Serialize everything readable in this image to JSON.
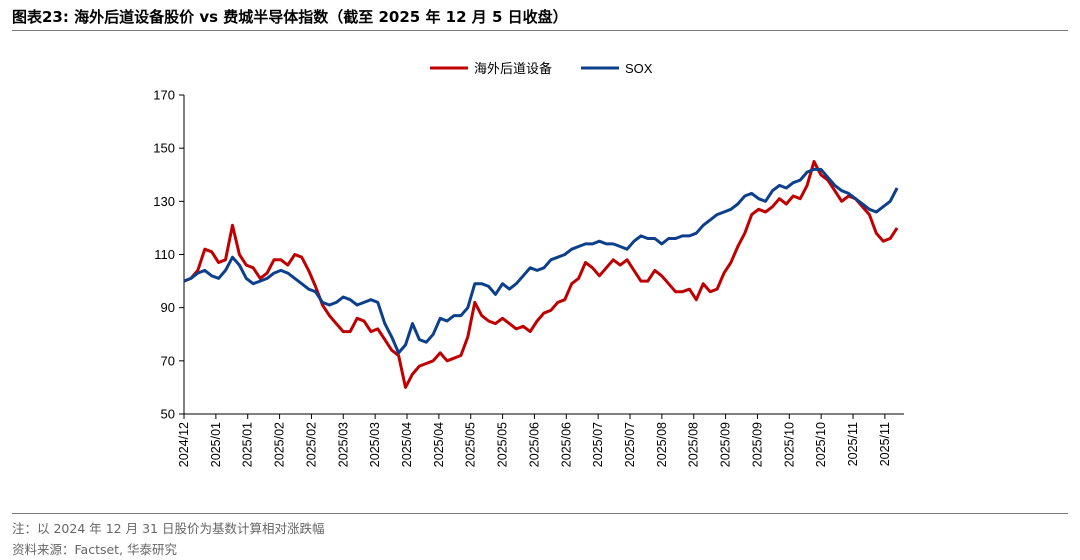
{
  "header": {
    "title": "图表23:   海外后道设备股价 vs 费城半导体指数（截至 2025 年 12 月 5 日收盘）"
  },
  "footer": {
    "note": "注：以 2024 年 12 月 31 日股价为基数计算相对涨跌幅",
    "source": "资料来源：Factset, 华泰研究"
  },
  "colors": {
    "series_a": "#c00000",
    "series_b": "#0c3f8c",
    "axis": "#000000"
  },
  "chart_data": {
    "type": "line",
    "title": "海外后道设备股价 vs 费城半导体指数",
    "xlabel": "",
    "ylabel": "",
    "ylim": [
      50,
      170
    ],
    "yticks": [
      50,
      70,
      90,
      110,
      130,
      150,
      170
    ],
    "xticks": [
      "2024/12",
      "2025/01",
      "2025/01",
      "2025/02",
      "2025/02",
      "2025/03",
      "2025/03",
      "2025/04",
      "2025/04",
      "2025/05",
      "2025/05",
      "2025/06",
      "2025/06",
      "2025/07",
      "2025/07",
      "2025/08",
      "2025/08",
      "2025/09",
      "2025/09",
      "2025/10",
      "2025/10",
      "2025/11",
      "2025/11"
    ],
    "grid": false,
    "legend": "top-center",
    "x_range_weeks": [
      0,
      52
    ],
    "series": [
      {
        "name": "海外后道设备",
        "color": "#c00000",
        "x": [
          0,
          0.5,
          1,
          1.5,
          2,
          2.5,
          3,
          3.5,
          4,
          4.5,
          5,
          5.5,
          6,
          6.5,
          7,
          7.5,
          8,
          8.5,
          9,
          9.5,
          10,
          10.5,
          11,
          11.5,
          12,
          12.5,
          13,
          13.5,
          14,
          14.5,
          15,
          15.5,
          16,
          16.5,
          17,
          17.5,
          18,
          18.5,
          19,
          19.5,
          20,
          20.5,
          21,
          21.5,
          22,
          22.5,
          23,
          23.5,
          24,
          24.5,
          25,
          25.5,
          26,
          26.5,
          27,
          27.5,
          28,
          28.5,
          29,
          29.5,
          30,
          30.5,
          31,
          31.5,
          32,
          32.5,
          33,
          33.5,
          34,
          34.5,
          35,
          35.5,
          36,
          36.5,
          37,
          37.5,
          38,
          38.5,
          39,
          39.5,
          40,
          40.5,
          41,
          41.5,
          42,
          42.5,
          43,
          43.5,
          44,
          44.5,
          45,
          45.5,
          46,
          46.5,
          47,
          47.5,
          48,
          48.5,
          49,
          49.5,
          50,
          50.5,
          51,
          51.5
        ],
        "values": [
          100,
          101,
          104,
          112,
          111,
          107,
          108,
          121,
          110,
          106,
          105,
          101,
          103,
          108,
          108,
          106,
          110,
          109,
          104,
          98,
          91,
          87,
          84,
          81,
          81,
          86,
          85,
          81,
          82,
          78,
          74,
          72,
          60,
          65,
          68,
          69,
          70,
          73,
          70,
          71,
          72,
          79,
          92,
          87,
          85,
          84,
          86,
          84,
          82,
          83,
          81,
          85,
          88,
          89,
          92,
          93,
          99,
          101,
          107,
          105,
          102,
          105,
          108,
          106,
          108,
          104,
          100,
          100,
          104,
          102,
          99,
          96,
          96,
          97,
          93,
          99,
          96,
          97,
          103,
          107,
          113,
          118,
          125,
          127,
          126,
          128,
          131,
          129,
          132,
          131,
          136,
          145,
          140,
          138,
          134,
          130,
          132,
          131,
          128,
          125,
          118,
          115,
          116,
          120
        ]
      },
      {
        "name": "SOX",
        "color": "#0c3f8c",
        "x": [
          0,
          0.5,
          1,
          1.5,
          2,
          2.5,
          3,
          3.5,
          4,
          4.5,
          5,
          5.5,
          6,
          6.5,
          7,
          7.5,
          8,
          8.5,
          9,
          9.5,
          10,
          10.5,
          11,
          11.5,
          12,
          12.5,
          13,
          13.5,
          14,
          14.5,
          15,
          15.5,
          16,
          16.5,
          17,
          17.5,
          18,
          18.5,
          19,
          19.5,
          20,
          20.5,
          21,
          21.5,
          22,
          22.5,
          23,
          23.5,
          24,
          24.5,
          25,
          25.5,
          26,
          26.5,
          27,
          27.5,
          28,
          28.5,
          29,
          29.5,
          30,
          30.5,
          31,
          31.5,
          32,
          32.5,
          33,
          33.5,
          34,
          34.5,
          35,
          35.5,
          36,
          36.5,
          37,
          37.5,
          38,
          38.5,
          39,
          39.5,
          40,
          40.5,
          41,
          41.5,
          42,
          42.5,
          43,
          43.5,
          44,
          44.5,
          45,
          45.5,
          46,
          46.5,
          47,
          47.5,
          48,
          48.5,
          49,
          49.5,
          50,
          50.5,
          51,
          51.5
        ],
        "values": [
          100,
          101,
          103,
          104,
          102,
          101,
          104,
          109,
          106,
          101,
          99,
          100,
          101,
          103,
          104,
          103,
          101,
          99,
          97,
          96,
          92,
          91,
          92,
          94,
          93,
          91,
          92,
          93,
          92,
          84,
          79,
          73,
          76,
          84,
          78,
          77,
          80,
          86,
          85,
          87,
          87,
          90,
          99,
          99,
          98,
          95,
          99,
          97,
          99,
          102,
          105,
          104,
          105,
          108,
          109,
          110,
          112,
          113,
          114,
          114,
          115,
          114,
          114,
          113,
          112,
          115,
          117,
          116,
          116,
          114,
          116,
          116,
          117,
          117,
          118,
          121,
          123,
          125,
          126,
          127,
          129,
          132,
          133,
          131,
          130,
          134,
          136,
          135,
          137,
          138,
          141,
          142,
          142,
          139,
          136,
          134,
          133,
          131,
          129,
          127,
          126,
          128,
          130,
          135
        ]
      }
    ]
  }
}
